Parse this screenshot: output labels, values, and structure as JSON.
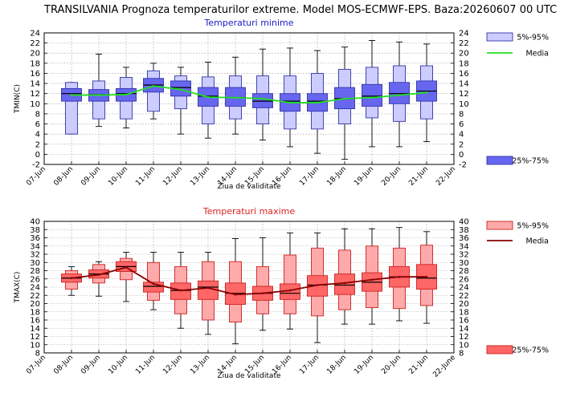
{
  "title": "TRANSILVANIA  Prognoza temperaturilor extreme.  Model MOS-ECMWF-EPS. Baza:20260607 00 UTC",
  "chart_data": [
    {
      "type": "box",
      "title": "Temperaturi minime",
      "title_color": "#2020c8",
      "xlabel": "Ziua de validitate",
      "ylabel": "TMIN(C)",
      "ylim": [
        -2,
        24
      ],
      "yticks": [
        "-2",
        "0",
        "2",
        "4",
        "6",
        "8",
        "10",
        "12",
        "14",
        "16",
        "18",
        "20",
        "22",
        "24"
      ],
      "x_tick_labels": [
        "07-Jun",
        "08-Jun",
        "09-Jun",
        "10-Jun",
        "11-Jun",
        "12-Jun",
        "13-Jun",
        "14-Jun",
        "15-Jun",
        "16-Jun",
        "17-Jun",
        "18-Jun",
        "19-Jun",
        "20-Jun",
        "21-Jun",
        "22-Jun"
      ],
      "grid": true,
      "colors": {
        "outer_fill": "#ccccff",
        "inner_fill": "#6666ee",
        "edge": "#3333aa",
        "median": "#000000",
        "mean_line": "#22dd22"
      },
      "legend": {
        "outer_label": "5%-95%",
        "mean_label": "Media",
        "inner_label": "25%-75%"
      },
      "series": [
        {
          "day": "08-Jun",
          "p5": 4,
          "p25": 10.5,
          "median": 12,
          "p75": 13,
          "p95": 14.2,
          "min": 4,
          "max": 14.2,
          "mean": 11.7
        },
        {
          "day": "09-Jun",
          "p5": 7,
          "p25": 10.5,
          "median": 11.8,
          "p75": 12.8,
          "p95": 14.5,
          "min": 5.5,
          "max": 19.8,
          "mean": 11.7
        },
        {
          "day": "10-Jun",
          "p5": 7,
          "p25": 10.5,
          "median": 12,
          "p75": 13,
          "p95": 15.2,
          "min": 5.2,
          "max": 17.2,
          "mean": 11.8
        },
        {
          "day": "11-Jun",
          "p5": 8.5,
          "p25": 12.3,
          "median": 13.7,
          "p75": 15,
          "p95": 16.5,
          "min": 7,
          "max": 18,
          "mean": 13.5
        },
        {
          "day": "12-Jun",
          "p5": 9,
          "p25": 11.5,
          "median": 13.2,
          "p75": 14.5,
          "p95": 15.5,
          "min": 4,
          "max": 17.2,
          "mean": 12.8
        },
        {
          "day": "13-Jun",
          "p5": 6,
          "p25": 9.5,
          "median": 11.5,
          "p75": 13.2,
          "p95": 15.3,
          "min": 3.2,
          "max": 18.2,
          "mean": 11.3
        },
        {
          "day": "14-Jun",
          "p5": 7,
          "p25": 9.5,
          "median": 11.2,
          "p75": 13.2,
          "p95": 15.5,
          "min": 4,
          "max": 19.2,
          "mean": 11.2
        },
        {
          "day": "15-Jun",
          "p5": 6,
          "p25": 9.2,
          "median": 10.5,
          "p75": 12,
          "p95": 15.5,
          "min": 2.8,
          "max": 20.8,
          "mean": 11
        },
        {
          "day": "16-Jun",
          "p5": 5,
          "p25": 8.5,
          "median": 10.5,
          "p75": 12,
          "p95": 15.5,
          "min": 1.5,
          "max": 21,
          "mean": 10.2
        },
        {
          "day": "17-Jun",
          "p5": 5,
          "p25": 8.5,
          "median": 10.5,
          "p75": 12,
          "p95": 16,
          "min": 0.2,
          "max": 20.5,
          "mean": 10.2
        },
        {
          "day": "18-Jun",
          "p5": 6,
          "p25": 9,
          "median": 11,
          "p75": 13.2,
          "p95": 16.8,
          "min": -1,
          "max": 21.2,
          "mean": 11
        },
        {
          "day": "19-Jun",
          "p5": 7.2,
          "p25": 9.5,
          "median": 11.5,
          "p75": 13.8,
          "p95": 17.2,
          "min": 1.5,
          "max": 22.5,
          "mean": 11.2
        },
        {
          "day": "20-Jun",
          "p5": 6.5,
          "p25": 10,
          "median": 12,
          "p75": 14.2,
          "p95": 17.5,
          "min": 1.5,
          "max": 22.2,
          "mean": 11.7
        },
        {
          "day": "21-Jun",
          "p5": 7,
          "p25": 10.5,
          "median": 12.5,
          "p75": 14.5,
          "p95": 17.5,
          "min": 2.5,
          "max": 21.8,
          "mean": 12.2
        }
      ]
    },
    {
      "type": "box",
      "title": "Temperaturi maxime",
      "title_color": "#dd2222",
      "xlabel": "Ziua de validitate",
      "ylabel": "TMAX(C)",
      "ylim": [
        8,
        40
      ],
      "yticks": [
        "8",
        "10",
        "12",
        "14",
        "16",
        "18",
        "20",
        "22",
        "24",
        "26",
        "28",
        "30",
        "32",
        "34",
        "36",
        "38",
        "40"
      ],
      "x_tick_labels": [
        "07-Jun",
        "08-Jun",
        "09-Jun",
        "10-Jun",
        "11-Jun",
        "12-Jun",
        "13-Jun",
        "14-Jun",
        "15-Jun",
        "16-Jun",
        "17-Jun",
        "18-Jun",
        "19-Jun",
        "20-Jun",
        "21-Jun",
        "22-June"
      ],
      "grid": true,
      "colors": {
        "outer_fill": "#ffaaaa",
        "inner_fill": "#ff6666",
        "edge": "#cc2222",
        "median": "#000000",
        "mean_line": "#880000"
      },
      "legend": {
        "outer_label": "5%-95%",
        "mean_label": "Media",
        "inner_label": "25%-75%"
      },
      "series": [
        {
          "day": "08-Jun",
          "p5": 23.5,
          "p25": 25.2,
          "median": 26.2,
          "p75": 27.2,
          "p95": 28,
          "min": 22,
          "max": 29,
          "mean": 26.2
        },
        {
          "day": "09-Jun",
          "p5": 25,
          "p25": 26.2,
          "median": 27.2,
          "p75": 28.2,
          "p95": 29.5,
          "min": 21.8,
          "max": 30.2,
          "mean": 27
        },
        {
          "day": "10-Jun",
          "p5": 25.8,
          "p25": 27.8,
          "median": 29,
          "p75": 30.2,
          "p95": 31,
          "min": 20.5,
          "max": 32.5,
          "mean": 28.8
        },
        {
          "day": "11-Jun",
          "p5": 20.8,
          "p25": 22.8,
          "median": 24.2,
          "p75": 25.2,
          "p95": 30,
          "min": 18.5,
          "max": 32.5,
          "mean": 24.8
        },
        {
          "day": "12-Jun",
          "p5": 17.5,
          "p25": 21,
          "median": 23.2,
          "p75": 25,
          "p95": 29,
          "min": 14,
          "max": 32.5,
          "mean": 23.2
        },
        {
          "day": "13-Jun",
          "p5": 16,
          "p25": 21,
          "median": 24,
          "p75": 25.5,
          "p95": 30.2,
          "min": 12.5,
          "max": 32.5,
          "mean": 23.8
        },
        {
          "day": "14-Jun",
          "p5": 15.5,
          "p25": 19.8,
          "median": 22.5,
          "p75": 25,
          "p95": 30.2,
          "min": 10.2,
          "max": 35.8,
          "mean": 22.2
        },
        {
          "day": "15-Jun",
          "p5": 17.5,
          "p25": 20.8,
          "median": 22.5,
          "p75": 24.2,
          "p95": 29,
          "min": 13.5,
          "max": 36,
          "mean": 22.5
        },
        {
          "day": "16-Jun",
          "p5": 17.5,
          "p25": 21,
          "median": 22.5,
          "p75": 24.8,
          "p95": 31.8,
          "min": 13.8,
          "max": 37.2,
          "mean": 23.2
        },
        {
          "day": "17-Jun",
          "p5": 17,
          "p25": 21.8,
          "median": 24.5,
          "p75": 26.8,
          "p95": 33.5,
          "min": 10.5,
          "max": 37.2,
          "mean": 24.5
        },
        {
          "day": "18-Jun",
          "p5": 18.5,
          "p25": 22.2,
          "median": 24.5,
          "p75": 27.2,
          "p95": 33,
          "min": 15,
          "max": 38.2,
          "mean": 25
        },
        {
          "day": "19-Jun",
          "p5": 19,
          "p25": 23,
          "median": 25.2,
          "p75": 27.5,
          "p95": 34,
          "min": 15,
          "max": 38.2,
          "mean": 25.8
        },
        {
          "day": "20-Jun",
          "p5": 18.8,
          "p25": 24,
          "median": 26.5,
          "p75": 29,
          "p95": 33.5,
          "min": 15.8,
          "max": 38.5,
          "mean": 26.5
        },
        {
          "day": "21-Jun",
          "p5": 19.5,
          "p25": 23.5,
          "median": 26.2,
          "p75": 29.5,
          "p95": 34.2,
          "min": 15.2,
          "max": 37.5,
          "mean": 26.5
        }
      ]
    }
  ]
}
